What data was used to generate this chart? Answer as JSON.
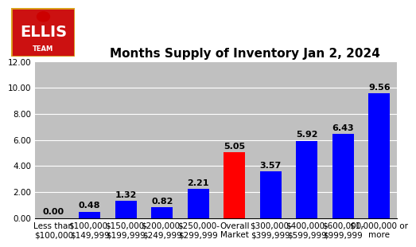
{
  "title": "Months Supply of Inventory Jan 2, 2024",
  "categories": [
    "Less than\n$100,000",
    "$100,000-\n$149,999",
    "$150,000-\n$199,999",
    "$200,000-\n$249,999",
    "$250,000-\n$299,999",
    "Overall\nMarket",
    "$300,000-\n$399,999",
    "$400,000-\n$599,999",
    "$600,000-\n$999,999",
    "$1,000,000 or\nmore"
  ],
  "values": [
    0.0,
    0.48,
    1.32,
    0.82,
    2.21,
    5.05,
    3.57,
    5.92,
    6.43,
    9.56
  ],
  "bar_colors": [
    "#0000FF",
    "#0000FF",
    "#0000FF",
    "#0000FF",
    "#0000FF",
    "#FF0000",
    "#0000FF",
    "#0000FF",
    "#0000FF",
    "#0000FF"
  ],
  "ylim": [
    0,
    12.0
  ],
  "yticks": [
    0.0,
    2.0,
    4.0,
    6.0,
    8.0,
    10.0,
    12.0
  ],
  "background_color": "#C0C0C0",
  "title_fontsize": 11,
  "label_fontsize": 7.5,
  "value_fontsize": 8,
  "tick_fontsize": 7.5
}
